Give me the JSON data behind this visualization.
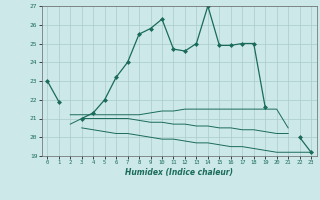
{
  "xlabel": "Humidex (Indice chaleur)",
  "xlim": [
    -0.5,
    23.5
  ],
  "ylim": [
    19,
    27
  ],
  "yticks": [
    19,
    20,
    21,
    22,
    23,
    24,
    25,
    26,
    27
  ],
  "xticks": [
    0,
    1,
    2,
    3,
    4,
    5,
    6,
    7,
    8,
    9,
    10,
    11,
    12,
    13,
    14,
    15,
    16,
    17,
    18,
    19,
    20,
    21,
    22,
    23
  ],
  "bg_color": "#cce8e8",
  "grid_color": "#aacccc",
  "line_color": "#1a6b5a",
  "line1": [
    23.0,
    21.9,
    null,
    21.0,
    21.3,
    22.0,
    23.2,
    24.0,
    25.5,
    25.8,
    26.3,
    24.7,
    24.6,
    25.0,
    27.0,
    24.9,
    24.9,
    25.0,
    25.0,
    21.6,
    null,
    null,
    20.0,
    19.2
  ],
  "line2": [
    null,
    null,
    21.2,
    21.2,
    21.2,
    21.2,
    21.2,
    21.2,
    21.2,
    21.3,
    21.4,
    21.4,
    21.5,
    21.5,
    21.5,
    21.5,
    21.5,
    21.5,
    21.5,
    21.5,
    21.5,
    20.5,
    null,
    null
  ],
  "line3": [
    null,
    null,
    20.7,
    21.0,
    21.0,
    21.0,
    21.0,
    21.0,
    20.9,
    20.8,
    20.8,
    20.7,
    20.7,
    20.6,
    20.6,
    20.5,
    20.5,
    20.4,
    20.4,
    20.3,
    20.2,
    20.2,
    null,
    null
  ],
  "line4": [
    null,
    null,
    null,
    20.5,
    20.4,
    20.3,
    20.2,
    20.2,
    20.1,
    20.0,
    19.9,
    19.9,
    19.8,
    19.7,
    19.7,
    19.6,
    19.5,
    19.5,
    19.4,
    19.3,
    19.2,
    19.2,
    19.2,
    19.2
  ]
}
